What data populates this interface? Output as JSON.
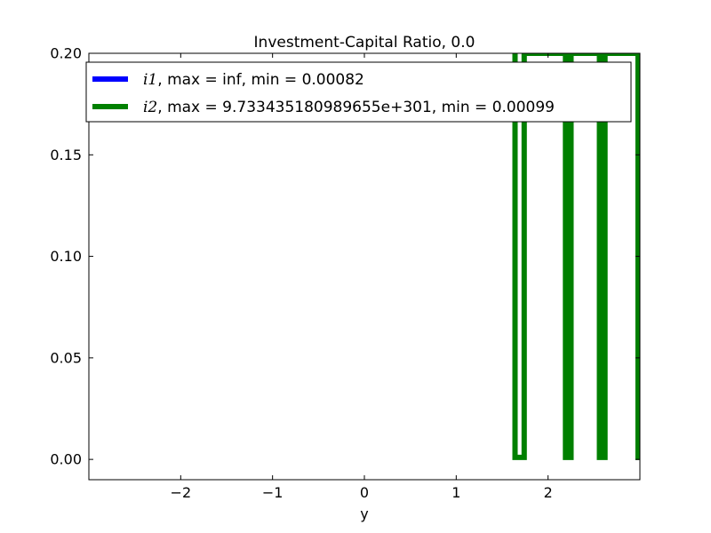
{
  "chart_data": {
    "type": "line",
    "title": "Investment-Capital Ratio, 0.0",
    "xlabel": "y",
    "ylabel": "",
    "xlim": [
      -3.0,
      3.0
    ],
    "ylim": [
      -0.01,
      0.2
    ],
    "x_ticks": [
      -2,
      -1,
      0,
      1,
      2
    ],
    "x_tick_labels": [
      "−2",
      "−1",
      "0",
      "1",
      "2"
    ],
    "y_ticks": [
      0.0,
      0.05,
      0.1,
      0.15,
      0.2
    ],
    "y_tick_labels": [
      "0.00",
      "0.05",
      "0.10",
      "0.15",
      "0.20"
    ],
    "grid": false,
    "legend_position": "top",
    "series": [
      {
        "name": "i1",
        "legend_math": "i1",
        "legend_text": ", max = inf, min = 0.00082",
        "color": "#0000ff",
        "points": []
      },
      {
        "name": "i2",
        "legend_math": "i2",
        "legend_text": ", max = 9.733435180989655e+301, min = 0.00099",
        "color": "#008000",
        "points": [
          [
            1.64,
            0.2
          ],
          [
            1.64,
            0.001
          ],
          [
            1.74,
            0.001
          ],
          [
            1.74,
            0.2
          ],
          [
            2.19,
            0.2
          ],
          [
            2.19,
            0.001
          ],
          [
            2.21,
            0.001
          ],
          [
            2.21,
            0.2
          ],
          [
            2.23,
            0.2
          ],
          [
            2.23,
            0.001
          ],
          [
            2.25,
            0.001
          ],
          [
            2.25,
            0.2
          ],
          [
            2.56,
            0.2
          ],
          [
            2.56,
            0.001
          ],
          [
            2.58,
            0.001
          ],
          [
            2.58,
            0.2
          ],
          [
            2.6,
            0.2
          ],
          [
            2.6,
            0.001
          ],
          [
            2.62,
            0.001
          ],
          [
            2.62,
            0.2
          ],
          [
            2.98,
            0.2
          ],
          [
            2.98,
            0.001
          ],
          [
            3.0,
            0.001
          ]
        ]
      }
    ]
  }
}
